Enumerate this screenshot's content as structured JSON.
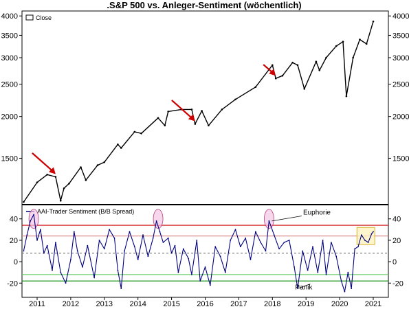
{
  "chart_data": [
    {
      "type": "line",
      "title": ".S&P 500 vs. Anleger-Sentiment (wöchentlich)",
      "legend": "Close",
      "legend_placement": "top-left",
      "y_scale": "log",
      "ylim": [
        1100,
        4100
      ],
      "yticks": [
        1500,
        2000,
        2500,
        3000,
        3500,
        4000
      ],
      "grid": false,
      "series": [
        {
          "name": "Close",
          "x": [
            2010.6,
            2011.0,
            2011.3,
            2011.55,
            2011.7,
            2011.8,
            2011.95,
            2012.3,
            2012.45,
            2012.8,
            2013.0,
            2013.4,
            2013.5,
            2013.9,
            2014.1,
            2014.6,
            2014.8,
            2014.9,
            2015.3,
            2015.6,
            2015.7,
            2015.9,
            2016.1,
            2016.5,
            2016.9,
            2017.5,
            2018.0,
            2018.1,
            2018.3,
            2018.6,
            2018.75,
            2018.95,
            2019.3,
            2019.4,
            2019.6,
            2019.9,
            2020.1,
            2020.2,
            2020.4,
            2020.6,
            2020.8,
            2021.0
          ],
          "values": [
            1110,
            1270,
            1340,
            1320,
            1120,
            1220,
            1260,
            1410,
            1290,
            1430,
            1460,
            1650,
            1610,
            1800,
            1780,
            1980,
            1880,
            2070,
            2100,
            2100,
            1900,
            2080,
            1880,
            2100,
            2250,
            2450,
            2850,
            2600,
            2650,
            2900,
            2850,
            2420,
            2920,
            2750,
            3000,
            3250,
            3350,
            2300,
            3000,
            3400,
            3300,
            3850
          ]
        }
      ],
      "annotations": [
        {
          "type": "arrow",
          "color": "#cc0000",
          "x": 2011.55
        },
        {
          "type": "arrow",
          "color": "#cc0000",
          "x": 2015.7
        },
        {
          "type": "arrow",
          "color": "#cc0000",
          "x": 2018.1
        }
      ]
    },
    {
      "type": "line",
      "legend": "AAI-Trader Sentiment (B/B Spread)",
      "legend_placement": "top-left",
      "ylim": [
        -32,
        52
      ],
      "yticks": [
        -20,
        0,
        20,
        40
      ],
      "xticks": [
        "2011",
        "2012",
        "2013",
        "2014",
        "2015",
        "2016",
        "2017",
        "2018",
        "2019",
        "2020",
        "2021"
      ],
      "reference_lines": [
        {
          "y": 34,
          "color": "#cc0000"
        },
        {
          "y": 24,
          "color": "#d88080"
        },
        {
          "y": 8,
          "color": "#808080",
          "style": "dashed"
        },
        {
          "y": -12,
          "color": "#66cc66"
        },
        {
          "y": -18,
          "color": "#008800"
        }
      ],
      "series": [
        {
          "name": "AAI-Trader Sentiment (B/B Spread)",
          "x": [
            2010.6,
            2010.7,
            2010.8,
            2010.9,
            2011.0,
            2011.1,
            2011.2,
            2011.3,
            2011.45,
            2011.55,
            2011.7,
            2011.85,
            2012.0,
            2012.1,
            2012.2,
            2012.35,
            2012.5,
            2012.7,
            2012.85,
            2013.0,
            2013.15,
            2013.3,
            2013.4,
            2013.5,
            2013.6,
            2013.75,
            2013.9,
            2014.0,
            2014.15,
            2014.3,
            2014.45,
            2014.55,
            2014.65,
            2014.75,
            2014.9,
            2015.0,
            2015.1,
            2015.2,
            2015.35,
            2015.5,
            2015.6,
            2015.75,
            2015.85,
            2016.0,
            2016.15,
            2016.3,
            2016.45,
            2016.6,
            2016.75,
            2016.9,
            2017.05,
            2017.2,
            2017.35,
            2017.5,
            2017.65,
            2017.8,
            2017.9,
            2018.05,
            2018.2,
            2018.35,
            2018.5,
            2018.65,
            2018.75,
            2018.9,
            2019.05,
            2019.2,
            2019.35,
            2019.5,
            2019.6,
            2019.75,
            2019.9,
            2020.05,
            2020.15,
            2020.25,
            2020.35,
            2020.45,
            2020.55,
            2020.65,
            2020.75,
            2020.85,
            2020.95,
            2021.0
          ],
          "values": [
            10,
            25,
            38,
            44,
            20,
            30,
            8,
            15,
            -8,
            18,
            -10,
            -20,
            2,
            28,
            10,
            -5,
            15,
            -15,
            20,
            12,
            30,
            22,
            -8,
            -25,
            10,
            28,
            14,
            2,
            25,
            5,
            22,
            38,
            28,
            18,
            22,
            8,
            15,
            -10,
            12,
            3,
            -12,
            20,
            -18,
            -5,
            -22,
            14,
            5,
            -10,
            20,
            30,
            14,
            22,
            2,
            28,
            18,
            10,
            38,
            25,
            12,
            18,
            20,
            -5,
            -25,
            10,
            -8,
            14,
            -10,
            20,
            -12,
            18,
            5,
            -18,
            -28,
            -10,
            -25,
            12,
            14,
            25,
            20,
            18,
            26,
            28
          ]
        }
      ],
      "annotations": [
        {
          "text": "Euphorie",
          "x": 2018.3,
          "y": 44
        },
        {
          "text": "Panik",
          "x": 2018.8,
          "y": -26
        },
        {
          "type": "ellipse-highlight",
          "x": 2010.9
        },
        {
          "type": "ellipse-highlight",
          "x": 2014.6
        },
        {
          "type": "ellipse-highlight",
          "x": 2017.9
        },
        {
          "type": "box-highlight",
          "x": 2020.8
        }
      ]
    }
  ]
}
